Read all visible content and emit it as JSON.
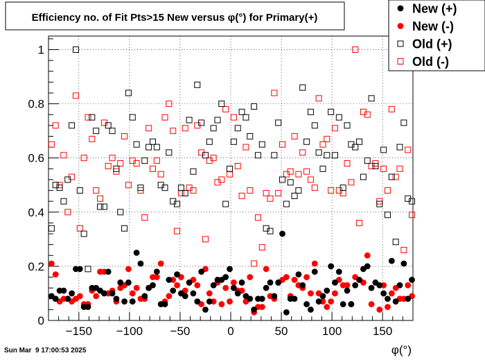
{
  "title": "Efficiency no. of Fit Pts>15 New versus φ(°) for Primary(+)",
  "timestamp": "Sun Mar  9 17:00:53 2025",
  "chart_data": {
    "type": "scatter",
    "title": "Efficiency no. of Fit Pts>15 New versus φ(°) for Primary(+)",
    "xlabel": "φ(°)",
    "ylabel": "",
    "xlim": [
      -180,
      180
    ],
    "ylim": [
      0,
      1.05
    ],
    "x_ticks": [
      -150,
      -100,
      -50,
      0,
      50,
      100,
      150
    ],
    "y_ticks": [
      0,
      0.2,
      0.4,
      0.6,
      0.8,
      1
    ],
    "x_tick_labels": [
      "−150",
      "−100",
      "−50",
      "0",
      "50",
      "100",
      "150"
    ],
    "y_tick_labels": [
      "0",
      "0.2",
      "0.4",
      "0.6",
      "0.8",
      "1"
    ],
    "grid": true,
    "legend_position": "top-right",
    "x": [
      -177,
      -173,
      -169,
      -165,
      -161,
      -157,
      -153,
      -149,
      -145,
      -141,
      -137,
      -133,
      -129,
      -125,
      -121,
      -117,
      -113,
      -109,
      -105,
      -101,
      -97,
      -93,
      -89,
      -85,
      -81,
      -77,
      -73,
      -69,
      -65,
      -61,
      -57,
      -53,
      -49,
      -45,
      -41,
      -37,
      -33,
      -29,
      -25,
      -21,
      -17,
      -13,
      -9,
      -5,
      -1,
      3,
      7,
      11,
      15,
      19,
      23,
      27,
      31,
      35,
      39,
      43,
      47,
      51,
      55,
      59,
      63,
      67,
      71,
      75,
      79,
      83,
      87,
      91,
      95,
      99,
      103,
      107,
      111,
      115,
      119,
      123,
      127,
      131,
      135,
      139,
      143,
      147,
      151,
      155,
      159,
      163,
      167,
      171,
      175,
      179
    ],
    "series": [
      {
        "name": "New (+)",
        "marker": "filled-circle",
        "color": "#000000",
        "values": [
          0.09,
          0.08,
          0.11,
          0.11,
          0.08,
          0.1,
          0.19,
          0.19,
          0.05,
          0.05,
          0.12,
          0.12,
          0.11,
          0.1,
          0.18,
          0.1,
          0.08,
          0.14,
          0.07,
          0.14,
          0.07,
          0.25,
          0.21,
          0.09,
          0.12,
          0.13,
          0.18,
          0.06,
          0.06,
          0.15,
          0.11,
          0.17,
          0.1,
          0.09,
          0.14,
          0.1,
          0.07,
          0.18,
          0.04,
          0.07,
          0.13,
          0.15,
          0.15,
          0.16,
          0.19,
          0.12,
          0.1,
          0.14,
          0.09,
          0.08,
          0.04,
          0.08,
          0.08,
          0.12,
          0.14,
          0.09,
          0.14,
          0.32,
          0.03,
          0.08,
          0.08,
          0.17,
          0.13,
          0.06,
          0.04,
          0.18,
          0.07,
          0.09,
          0.11,
          0.2,
          0.14,
          0.18,
          0.06,
          0.11,
          0.06,
          0.13,
          0.15,
          0.19,
          0.2,
          0.12,
          0.14,
          0.13,
          0.1,
          0.08,
          0.22,
          0.07,
          0.13,
          0.21,
          0.08,
          0.15
        ]
      },
      {
        "name": "New (-)",
        "marker": "filled-circle",
        "color": "#ff0000",
        "values": [
          0.21,
          0.17,
          0.07,
          0.08,
          0.08,
          0.07,
          0.08,
          0.09,
          0.06,
          0.06,
          0.11,
          0.09,
          0.18,
          0.18,
          0.1,
          0.11,
          0.07,
          0.12,
          0.13,
          0.19,
          0.1,
          0.12,
          0.08,
          0.08,
          0.12,
          0.16,
          0.16,
          0.21,
          0.07,
          0.09,
          0.15,
          0.13,
          0.16,
          0.11,
          0.14,
          0.15,
          0.13,
          0.06,
          0.19,
          0.1,
          0.07,
          0.14,
          0.06,
          0.12,
          0.07,
          0.14,
          0.11,
          0.11,
          0.07,
          0.16,
          0.03,
          0.05,
          0.05,
          0.19,
          0.09,
          0.08,
          0.14,
          0.15,
          0.16,
          0.09,
          0.15,
          0.13,
          0.12,
          0.16,
          0.1,
          0.21,
          0.1,
          0.07,
          0.05,
          0.07,
          0.1,
          0.15,
          0.13,
          0.13,
          0.06,
          0.16,
          0.15,
          0.14,
          0.24,
          0.06,
          0.14,
          0.04,
          0.13,
          0.05,
          0.1,
          0.12,
          0.08,
          0.08,
          0.13,
          0.09
        ]
      },
      {
        "name": "Old (+)",
        "marker": "open-square",
        "color": "#000000",
        "values": [
          0.34,
          0.5,
          0.49,
          0.44,
          0.52,
          0.72,
          1.0,
          0.48,
          0.32,
          0.19,
          0.75,
          0.7,
          0.42,
          0.42,
          0.72,
          0.7,
          0.56,
          0.4,
          0.34,
          0.84,
          0.75,
          0.65,
          0.49,
          0.59,
          0.64,
          0.66,
          0.64,
          0.5,
          0.49,
          0.62,
          0.44,
          0.43,
          0.49,
          0.47,
          0.74,
          0.55,
          0.87,
          0.73,
          0.61,
          0.66,
          0.71,
          0.74,
          0.8,
          0.43,
          0.56,
          0.66,
          0.71,
          0.77,
          0.75,
          0.68,
          0.79,
          0.61,
          0.65,
          0.34,
          0.33,
          0.61,
          0.73,
          0.52,
          0.43,
          0.51,
          0.46,
          0.48,
          0.86,
          0.66,
          0.77,
          0.72,
          0.62,
          0.56,
          0.61,
          0.77,
          0.61,
          0.75,
          0.49,
          0.72,
          0.65,
          0.64,
          0.66,
          0.53,
          0.59,
          0.82,
          0.57,
          0.43,
          0.63,
          0.39,
          0.53,
          0.29,
          0.64,
          0.73,
          0.45,
          0.44
        ]
      },
      {
        "name": "Old (-)",
        "marker": "open-square",
        "color": "#ff0000",
        "values": [
          0.65,
          0.72,
          0.5,
          0.61,
          0.4,
          0.53,
          0.83,
          0.34,
          0.6,
          0.75,
          0.67,
          0.48,
          0.45,
          0.73,
          0.57,
          0.6,
          0.55,
          0.58,
          0.68,
          0.5,
          0.59,
          0.58,
          0.48,
          0.38,
          0.71,
          0.56,
          0.59,
          0.54,
          0.75,
          0.8,
          0.7,
          0.33,
          0.47,
          0.71,
          0.49,
          0.48,
          0.72,
          0.62,
          0.3,
          0.59,
          0.6,
          0.51,
          0.52,
          0.78,
          0.54,
          0.75,
          0.57,
          0.46,
          0.64,
          0.48,
          0.21,
          0.38,
          0.27,
          0.47,
          0.45,
          0.84,
          0.47,
          0.65,
          0.54,
          0.55,
          0.68,
          0.54,
          0.62,
          0.55,
          0.52,
          0.49,
          0.82,
          0.65,
          0.67,
          0.48,
          0.71,
          0.48,
          0.47,
          0.58,
          0.51,
          1.0,
          0.36,
          0.77,
          0.76,
          0.57,
          0.58,
          0.44,
          0.56,
          0.48,
          0.78,
          0.53,
          0.56,
          0.26,
          0.63,
          0.39
        ]
      }
    ]
  }
}
